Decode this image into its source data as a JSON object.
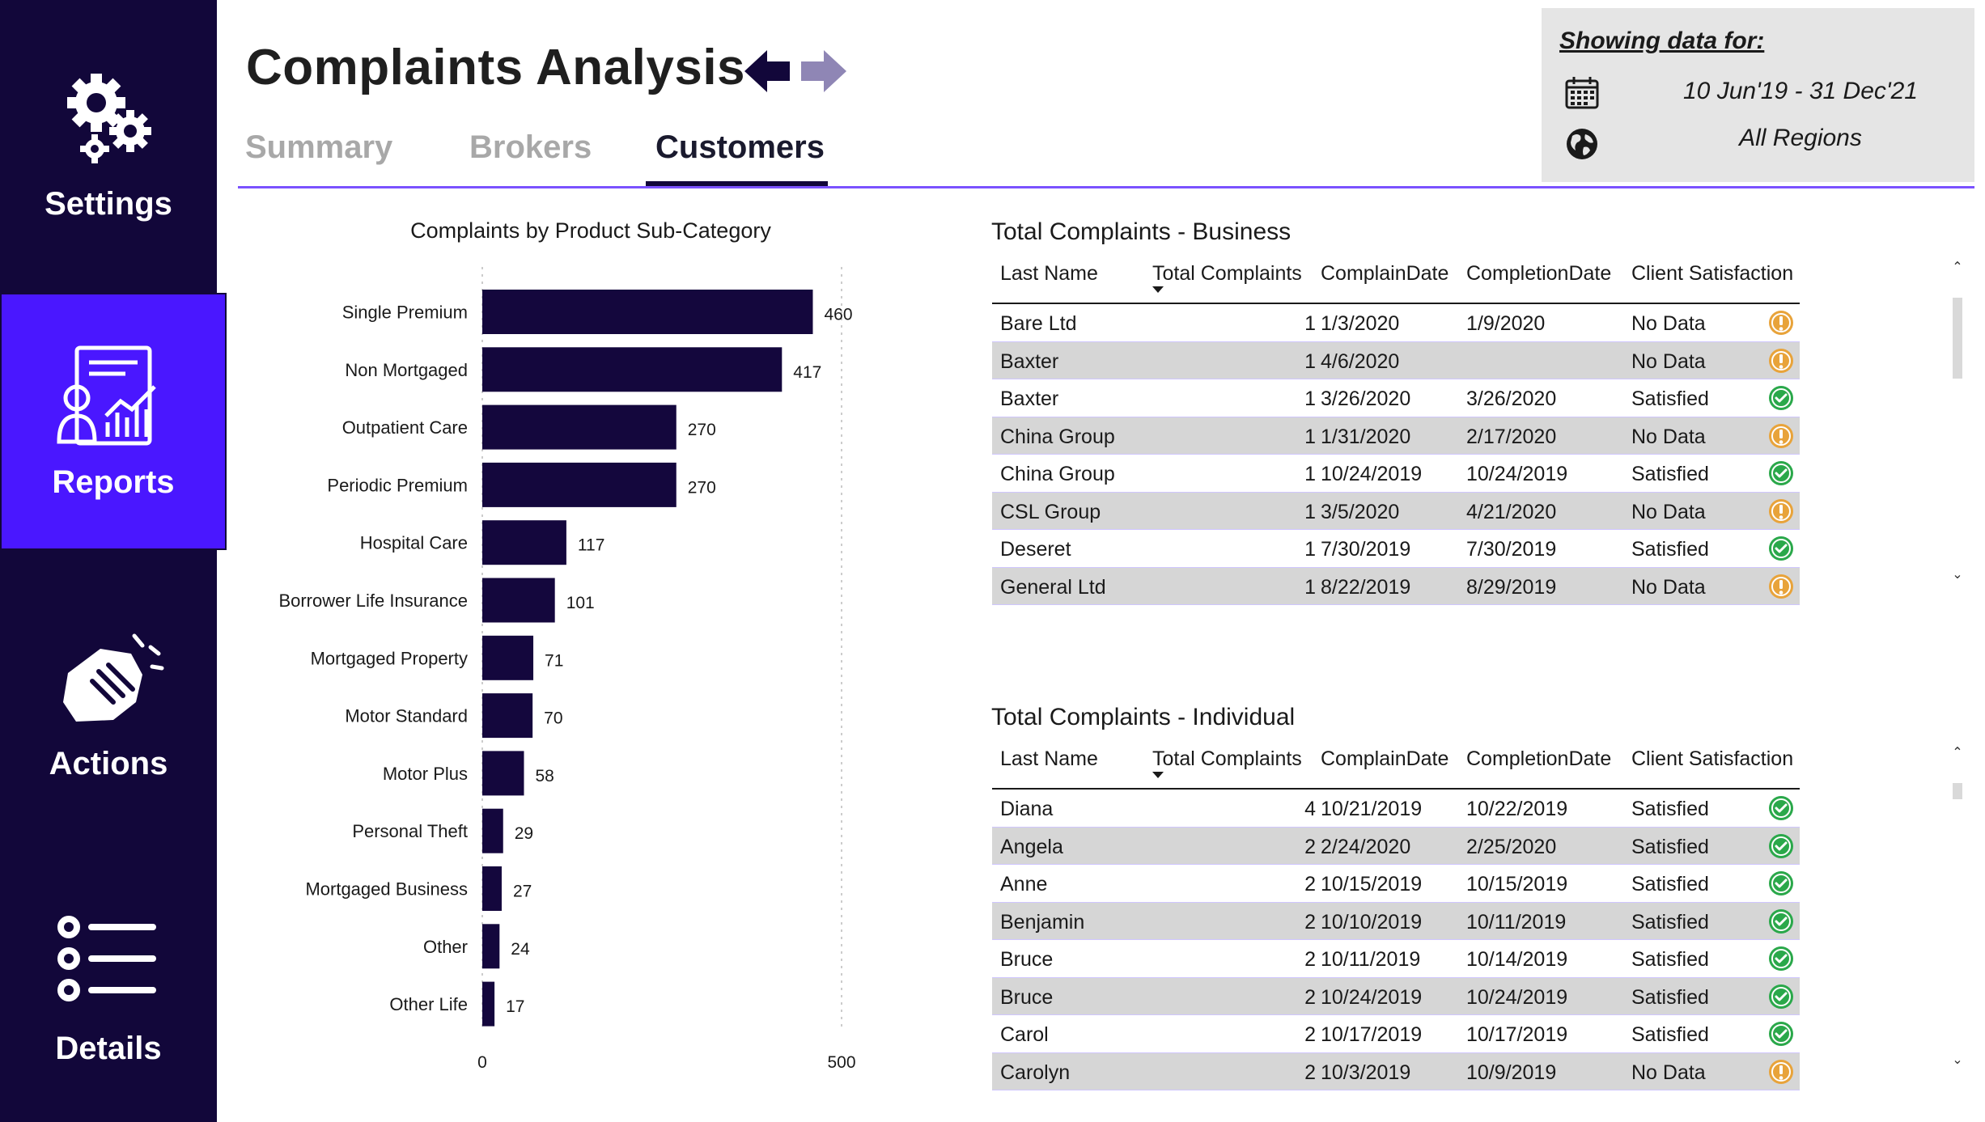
{
  "sidebar": {
    "items": [
      {
        "label": "Settings",
        "icon": "gears-icon"
      },
      {
        "label": "Reports",
        "icon": "report-icon"
      },
      {
        "label": "Actions",
        "icon": "hand-icon"
      },
      {
        "label": "Details",
        "icon": "list-icon"
      }
    ]
  },
  "header": {
    "title": "Complaints Analysis",
    "tabs": [
      {
        "label": "Summary",
        "active": false
      },
      {
        "label": "Brokers",
        "active": false
      },
      {
        "label": "Customers",
        "active": true
      }
    ]
  },
  "filter": {
    "title": "Showing data for:",
    "date_range": "10 Jun'19 - 31 Dec'21",
    "region": "All Regions"
  },
  "colors": {
    "sidebar": "#12073a",
    "active_nav": "#4a17ff",
    "bar": "#14073d",
    "accent_rule": "#7b52ff",
    "warning": "#e8a33a",
    "satisfied": "#2aa84a"
  },
  "chart_data": {
    "type": "bar",
    "orientation": "horizontal",
    "title": "Complaints by Product Sub-Category",
    "categories": [
      "Single Premium",
      "Non Mortgaged",
      "Outpatient Care",
      "Periodic Premium",
      "Hospital Care",
      "Borrower Life Insurance",
      "Mortgaged Property",
      "Motor Standard",
      "Motor Plus",
      "Personal Theft",
      "Mortgaged Business",
      "Other",
      "Other Life"
    ],
    "values": [
      460,
      417,
      270,
      270,
      117,
      101,
      71,
      70,
      58,
      29,
      27,
      24,
      17
    ],
    "xlim": [
      0,
      500
    ],
    "xticks": [
      "0",
      "500"
    ],
    "grid": true
  },
  "business_table": {
    "title": "Total Complaints - Business",
    "columns": [
      "Last Name",
      "Total Complaints",
      "ComplainDate",
      "CompletionDate",
      "Client Satisfaction"
    ],
    "rows": [
      {
        "name": "Bare Ltd",
        "total": "1",
        "complain": "1/3/2020",
        "completion": "1/9/2020",
        "satisfaction": "No Data",
        "status": "warning"
      },
      {
        "name": "Baxter",
        "total": "1",
        "complain": "4/6/2020",
        "completion": "",
        "satisfaction": "No Data",
        "status": "warning"
      },
      {
        "name": "Baxter",
        "total": "1",
        "complain": "3/26/2020",
        "completion": "3/26/2020",
        "satisfaction": "Satisfied",
        "status": "ok"
      },
      {
        "name": "China Group",
        "total": "1",
        "complain": "1/31/2020",
        "completion": "2/17/2020",
        "satisfaction": "No Data",
        "status": "warning"
      },
      {
        "name": "China Group",
        "total": "1",
        "complain": "10/24/2019",
        "completion": "10/24/2019",
        "satisfaction": "Satisfied",
        "status": "ok"
      },
      {
        "name": "CSL Group",
        "total": "1",
        "complain": "3/5/2020",
        "completion": "4/21/2020",
        "satisfaction": "No Data",
        "status": "warning"
      },
      {
        "name": "Deseret",
        "total": "1",
        "complain": "7/30/2019",
        "completion": "7/30/2019",
        "satisfaction": "Satisfied",
        "status": "ok"
      },
      {
        "name": "General Ltd",
        "total": "1",
        "complain": "8/22/2019",
        "completion": "8/29/2019",
        "satisfaction": "No Data",
        "status": "warning"
      }
    ]
  },
  "individual_table": {
    "title": "Total Complaints - Individual",
    "columns": [
      "Last Name",
      "Total Complaints",
      "ComplainDate",
      "CompletionDate",
      "Client Satisfaction"
    ],
    "rows": [
      {
        "name": "Diana",
        "total": "4",
        "complain": "10/21/2019",
        "completion": "10/22/2019",
        "satisfaction": "Satisfied",
        "status": "ok"
      },
      {
        "name": "Angela",
        "total": "2",
        "complain": "2/24/2020",
        "completion": "2/25/2020",
        "satisfaction": "Satisfied",
        "status": "ok"
      },
      {
        "name": "Anne",
        "total": "2",
        "complain": "10/15/2019",
        "completion": "10/15/2019",
        "satisfaction": "Satisfied",
        "status": "ok"
      },
      {
        "name": "Benjamin",
        "total": "2",
        "complain": "10/10/2019",
        "completion": "10/11/2019",
        "satisfaction": "Satisfied",
        "status": "ok"
      },
      {
        "name": "Bruce",
        "total": "2",
        "complain": "10/11/2019",
        "completion": "10/14/2019",
        "satisfaction": "Satisfied",
        "status": "ok"
      },
      {
        "name": "Bruce",
        "total": "2",
        "complain": "10/24/2019",
        "completion": "10/24/2019",
        "satisfaction": "Satisfied",
        "status": "ok"
      },
      {
        "name": "Carol",
        "total": "2",
        "complain": "10/17/2019",
        "completion": "10/17/2019",
        "satisfaction": "Satisfied",
        "status": "ok"
      },
      {
        "name": "Carolyn",
        "total": "2",
        "complain": "10/3/2019",
        "completion": "10/9/2019",
        "satisfaction": "No Data",
        "status": "warning"
      }
    ]
  }
}
